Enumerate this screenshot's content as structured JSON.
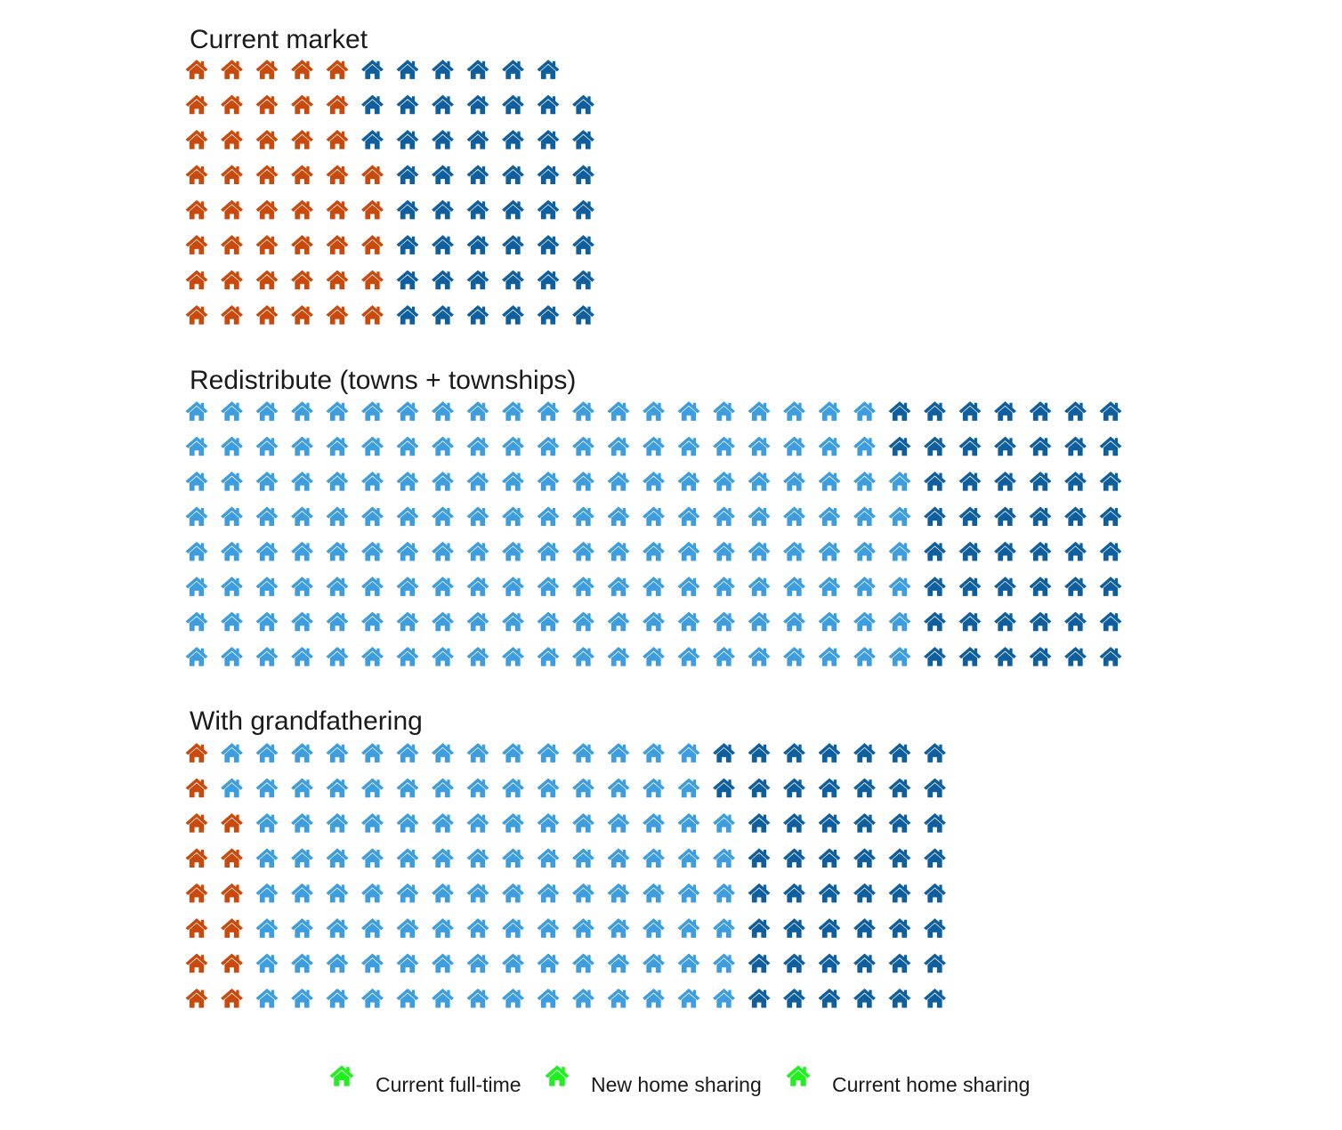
{
  "chart_data": {
    "type": "waffle",
    "categories": [
      "Current full-time",
      "New home sharing",
      "Current home sharing"
    ],
    "colors": {
      "Current full-time": "#c94a0c",
      "New home sharing": "#3d9ddf",
      "Current home sharing": "#0f5e9e",
      "legend_key": "#22ee22"
    },
    "icon": "house-icon",
    "rows_per_column": 8,
    "panels": [
      {
        "title": "Current market",
        "counts": {
          "Current full-time": 45,
          "New home sharing": 0,
          "Current home sharing": 50
        }
      },
      {
        "title": "Redistribute (towns + townships)",
        "counts": {
          "Current full-time": 0,
          "New home sharing": 166,
          "Current home sharing": 50
        }
      },
      {
        "title": "With grandfathering",
        "counts": {
          "Current full-time": 14,
          "New home sharing": 112,
          "Current home sharing": 50
        }
      }
    ],
    "legend": {
      "position": "bottom",
      "entries": [
        "Current full-time",
        "New home sharing",
        "Current home sharing"
      ]
    },
    "grid": false
  }
}
